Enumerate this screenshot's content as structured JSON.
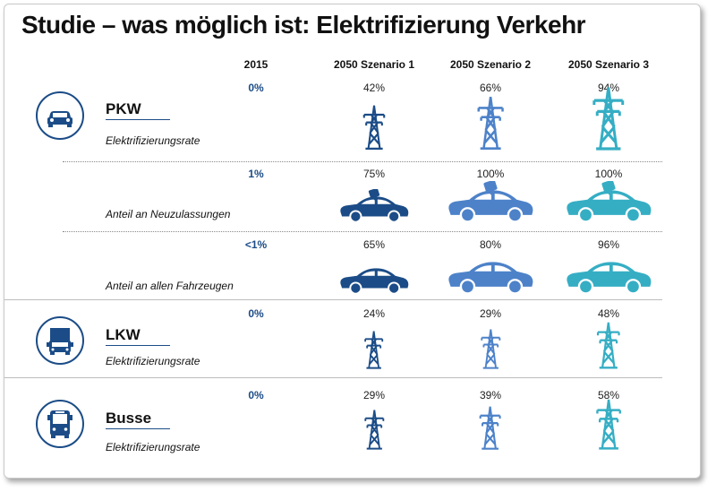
{
  "title": "Studie – was möglich ist: Elektrifizierung Verkehr",
  "columns": [
    "2015",
    "2050 Szenario 1",
    "2050 Szenario 2",
    "2050 Szenario 3"
  ],
  "colors": {
    "dark_blue": "#1b4c87",
    "mid_blue": "#4d82c9",
    "teal": "#35aec4"
  },
  "categories": [
    {
      "name": "PKW",
      "icon": "car-icon"
    },
    {
      "name": "LKW",
      "icon": "truck-icon"
    },
    {
      "name": "Busse",
      "icon": "bus-icon"
    }
  ],
  "rows": [
    {
      "sub": "Elektrifizierungsrate",
      "base": "0%",
      "values": [
        "42%",
        "66%",
        "94%"
      ],
      "icon": "power-pylon-icon"
    },
    {
      "sub": "Anteil an Neuzulassungen",
      "base": "1%",
      "values": [
        "75%",
        "100%",
        "100%"
      ],
      "icon": "charging-car-icon"
    },
    {
      "sub": "Anteil an allen Fahrzeugen",
      "base": "<1%",
      "values": [
        "65%",
        "80%",
        "96%"
      ],
      "icon": "car-icon"
    },
    {
      "sub": "Elektrifizierungsrate",
      "base": "0%",
      "values": [
        "24%",
        "29%",
        "48%"
      ],
      "icon": "power-pylon-icon"
    },
    {
      "sub": "Elektrifizierungsrate",
      "base": "0%",
      "values": [
        "29%",
        "39%",
        "58%"
      ],
      "icon": "power-pylon-icon"
    }
  ],
  "chart_data": {
    "type": "table",
    "title": "Studie – was möglich ist: Elektrifizierung Verkehr",
    "columns": [
      "2015",
      "2050 Szenario 1",
      "2050 Szenario 2",
      "2050 Szenario 3"
    ],
    "rows": [
      {
        "category": "PKW",
        "metric": "Elektrifizierungsrate",
        "values": [
          0,
          42,
          66,
          94
        ]
      },
      {
        "category": "PKW",
        "metric": "Anteil an Neuzulassungen",
        "values": [
          1,
          75,
          100,
          100
        ]
      },
      {
        "category": "PKW",
        "metric": "Anteil an allen Fahrzeugen",
        "values": [
          "<1",
          65,
          80,
          96
        ]
      },
      {
        "category": "LKW",
        "metric": "Elektrifizierungsrate",
        "values": [
          0,
          24,
          29,
          48
        ]
      },
      {
        "category": "Busse",
        "metric": "Elektrifizierungsrate",
        "values": [
          0,
          29,
          39,
          58
        ]
      }
    ],
    "unit": "%"
  }
}
